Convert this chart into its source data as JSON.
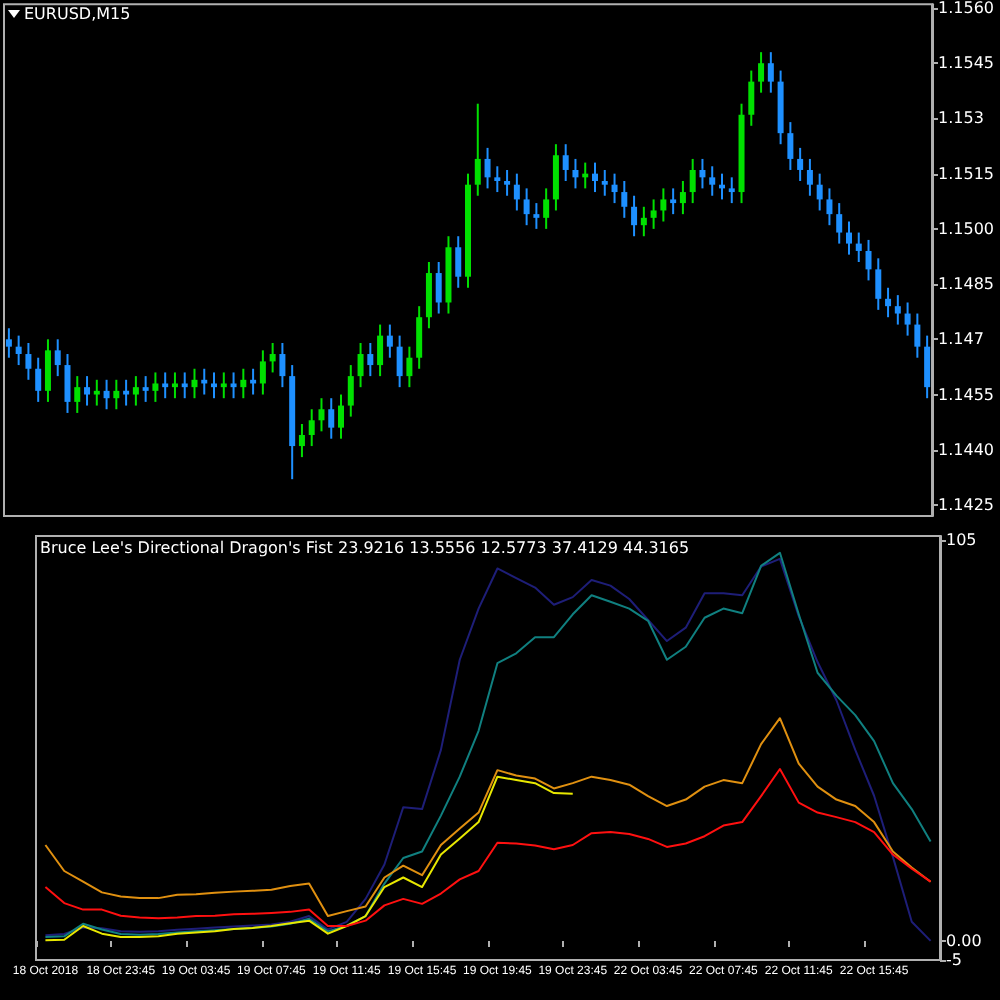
{
  "chart_data": [
    {
      "type": "candlestick",
      "title": "EURUSD,M15",
      "tick_labels": "y",
      "colors": [
        "#1e90ff",
        "#1e90ff",
        "#1e90ff",
        "#1e90ff",
        "#00e000",
        "#1e90ff",
        "#1e90ff",
        "#00e000",
        "#1e90ff",
        "#00e000",
        "#1e90ff",
        "#00e000",
        "#1e90ff",
        "#00e000",
        "#1e90ff",
        "#00e000",
        "#1e90ff",
        "#00e000",
        "#1e90ff",
        "#00e000",
        "#1e90ff",
        "#1e90ff",
        "#00e000",
        "#1e90ff",
        "#00e000",
        "#1e90ff",
        "#00e000",
        "#00e000",
        "#1e90ff",
        "#1e90ff",
        "#00e000",
        "#00e000",
        "#00e000",
        "#1e90ff",
        "#00e000",
        "#00e000",
        "#00e000",
        "#1e90ff",
        "#00e000",
        "#1e90ff",
        "#1e90ff",
        "#00e000",
        "#00e000",
        "#00e000",
        "#1e90ff",
        "#00e000",
        "#1e90ff",
        "#00e000",
        "#00e000",
        "#1e90ff",
        "#1e90ff",
        "#1e90ff",
        "#1e90ff",
        "#1e90ff",
        "#1e90ff",
        "#00e000",
        "#00e000",
        "#1e90ff",
        "#1e90ff",
        "#00e000",
        "#1e90ff",
        "#1e90ff",
        "#1e90ff",
        "#1e90ff",
        "#1e90ff",
        "#00e000",
        "#00e000",
        "#00e000",
        "#1e90ff",
        "#00e000",
        "#00e000",
        "#1e90ff",
        "#1e90ff",
        "#1e90ff",
        "#1e90ff",
        "#00e000",
        "#00e000",
        "#00e000",
        "#1e90ff",
        "#1e90ff",
        "#1e90ff",
        "#1e90ff",
        "#1e90ff",
        "#1e90ff",
        "#1e90ff",
        "#1e90ff",
        "#1e90ff",
        "#1e90ff",
        "#1e90ff",
        "#1e90ff",
        "#1e90ff",
        "#1e90ff",
        "#1e90ff",
        "#1e90ff",
        "#1e90ff"
      ],
      "categories": [
        null,
        null,
        null,
        null,
        null,
        null,
        null,
        null,
        null,
        null,
        null,
        null,
        null,
        null,
        null,
        null,
        null,
        null,
        null,
        null,
        null,
        null,
        null,
        null,
        null,
        null,
        null,
        null,
        null,
        null,
        null,
        null,
        null,
        null,
        null,
        null,
        null,
        null,
        null,
        null,
        null,
        null,
        null,
        null,
        null,
        null,
        null,
        null,
        null,
        null,
        null,
        null,
        null,
        null,
        null,
        null,
        null,
        null,
        null,
        null,
        null,
        null,
        null,
        null,
        null,
        null,
        null,
        null,
        null,
        null,
        null,
        null,
        null,
        null,
        null,
        null,
        null,
        null,
        null,
        null,
        null,
        null,
        null,
        null,
        null,
        null,
        null,
        null,
        null,
        null,
        null,
        null,
        null,
        null,
        null
      ],
      "ohlc": [
        [
          1.147,
          1.1473,
          1.1465,
          1.1468
        ],
        [
          1.1468,
          1.1471,
          1.1463,
          1.1466
        ],
        [
          1.1466,
          1.1469,
          1.1459,
          1.1462
        ],
        [
          1.1462,
          1.1465,
          1.1453,
          1.1456
        ],
        [
          1.1456,
          1.147,
          1.1453,
          1.1467
        ],
        [
          1.1467,
          1.147,
          1.146,
          1.1463
        ],
        [
          1.1463,
          1.1466,
          1.145,
          1.1453
        ],
        [
          1.1453,
          1.146,
          1.145,
          1.1457
        ],
        [
          1.1457,
          1.146,
          1.1452,
          1.1455
        ],
        [
          1.1455,
          1.1459,
          1.1452,
          1.1456
        ],
        [
          1.1456,
          1.1459,
          1.1451,
          1.1454
        ],
        [
          1.1454,
          1.1459,
          1.1451,
          1.1456
        ],
        [
          1.1456,
          1.1459,
          1.1452,
          1.1455
        ],
        [
          1.1455,
          1.146,
          1.1452,
          1.1457
        ],
        [
          1.1457,
          1.146,
          1.1453,
          1.1456
        ],
        [
          1.1456,
          1.1461,
          1.1453,
          1.1458
        ],
        [
          1.1458,
          1.1461,
          1.1454,
          1.1457
        ],
        [
          1.1457,
          1.1461,
          1.1454,
          1.1458
        ],
        [
          1.1458,
          1.1461,
          1.1454,
          1.1457
        ],
        [
          1.1457,
          1.1462,
          1.1454,
          1.1459
        ],
        [
          1.1459,
          1.1462,
          1.1455,
          1.1458
        ],
        [
          1.1458,
          1.1461,
          1.1454,
          1.1457
        ],
        [
          1.1457,
          1.1461,
          1.1454,
          1.1458
        ],
        [
          1.1458,
          1.1461,
          1.1454,
          1.1457
        ],
        [
          1.1457,
          1.1462,
          1.1454,
          1.1459
        ],
        [
          1.1459,
          1.1462,
          1.1455,
          1.1458
        ],
        [
          1.1458,
          1.1467,
          1.1455,
          1.1464
        ],
        [
          1.1464,
          1.1469,
          1.1461,
          1.1466
        ],
        [
          1.1466,
          1.1469,
          1.1457,
          1.146
        ],
        [
          1.146,
          1.1463,
          1.1432,
          1.1441
        ],
        [
          1.1441,
          1.1447,
          1.1438,
          1.1444
        ],
        [
          1.1444,
          1.1451,
          1.1441,
          1.1448
        ],
        [
          1.1448,
          1.1454,
          1.1445,
          1.1451
        ],
        [
          1.1451,
          1.1454,
          1.1443,
          1.1446
        ],
        [
          1.1446,
          1.1455,
          1.1443,
          1.1452
        ],
        [
          1.1452,
          1.1463,
          1.1449,
          1.146
        ],
        [
          1.146,
          1.1469,
          1.1457,
          1.1466
        ],
        [
          1.1466,
          1.1469,
          1.146,
          1.1463
        ],
        [
          1.1463,
          1.1474,
          1.146,
          1.1471
        ],
        [
          1.1471,
          1.1474,
          1.1465,
          1.1468
        ],
        [
          1.1468,
          1.1471,
          1.1457,
          1.146
        ],
        [
          1.146,
          1.1468,
          1.1457,
          1.1465
        ],
        [
          1.1465,
          1.1479,
          1.1462,
          1.1476
        ],
        [
          1.1476,
          1.1491,
          1.1473,
          1.1488
        ],
        [
          1.1488,
          1.1491,
          1.1477,
          1.148
        ],
        [
          1.148,
          1.1498,
          1.1477,
          1.1495
        ],
        [
          1.1495,
          1.1498,
          1.1484,
          1.1487
        ],
        [
          1.1487,
          1.1515,
          1.1484,
          1.1512
        ],
        [
          1.1512,
          1.1534,
          1.1509,
          1.1519
        ],
        [
          1.1519,
          1.1522,
          1.1511,
          1.1514
        ],
        [
          1.1514,
          1.1517,
          1.151,
          1.1513
        ],
        [
          1.1513,
          1.1516,
          1.1509,
          1.1512
        ],
        [
          1.1512,
          1.1515,
          1.1505,
          1.1508
        ],
        [
          1.1508,
          1.1511,
          1.1501,
          1.1504
        ],
        [
          1.1504,
          1.1507,
          1.15,
          1.1503
        ],
        [
          1.1503,
          1.1511,
          1.15,
          1.1508
        ],
        [
          1.1508,
          1.1523,
          1.1505,
          1.152
        ],
        [
          1.152,
          1.1523,
          1.1513,
          1.1516
        ],
        [
          1.1516,
          1.1519,
          1.1511,
          1.1514
        ],
        [
          1.1514,
          1.1518,
          1.1511,
          1.1515
        ],
        [
          1.1515,
          1.1518,
          1.151,
          1.1513
        ],
        [
          1.1513,
          1.1516,
          1.1509,
          1.1512
        ],
        [
          1.1512,
          1.1515,
          1.1507,
          1.151
        ],
        [
          1.151,
          1.1513,
          1.1503,
          1.1506
        ],
        [
          1.1506,
          1.1509,
          1.1498,
          1.1501
        ],
        [
          1.1501,
          1.1506,
          1.1498,
          1.1503
        ],
        [
          1.1503,
          1.1508,
          1.15,
          1.1505
        ],
        [
          1.1505,
          1.1511,
          1.1502,
          1.1508
        ],
        [
          1.1508,
          1.1511,
          1.1504,
          1.1507
        ],
        [
          1.1507,
          1.1513,
          1.1504,
          1.151
        ],
        [
          1.151,
          1.1519,
          1.1507,
          1.1516
        ],
        [
          1.1516,
          1.1519,
          1.1511,
          1.1514
        ],
        [
          1.1514,
          1.1517,
          1.1509,
          1.1512
        ],
        [
          1.1512,
          1.1515,
          1.1508,
          1.1511
        ],
        [
          1.1511,
          1.1514,
          1.1507,
          1.151
        ],
        [
          1.151,
          1.1534,
          1.1507,
          1.1531
        ],
        [
          1.1531,
          1.1543,
          1.1528,
          1.154
        ],
        [
          1.154,
          1.1548,
          1.1537,
          1.1545
        ],
        [
          1.1545,
          1.1548,
          1.1537,
          1.154
        ],
        [
          1.154,
          1.1543,
          1.1523,
          1.1526
        ],
        [
          1.1526,
          1.1529,
          1.1516,
          1.1519
        ],
        [
          1.1519,
          1.1522,
          1.1513,
          1.1516
        ],
        [
          1.1516,
          1.1519,
          1.1509,
          1.1512
        ],
        [
          1.1512,
          1.1515,
          1.1505,
          1.1508
        ],
        [
          1.1508,
          1.1511,
          1.1501,
          1.1504
        ],
        [
          1.1504,
          1.1507,
          1.1496,
          1.1499
        ],
        [
          1.1499,
          1.1502,
          1.1493,
          1.1496
        ],
        [
          1.1496,
          1.1499,
          1.1491,
          1.1494
        ],
        [
          1.1494,
          1.1497,
          1.1486,
          1.1489
        ],
        [
          1.1489,
          1.1492,
          1.1478,
          1.1481
        ],
        [
          1.1481,
          1.1484,
          1.1476,
          1.1479
        ],
        [
          1.1479,
          1.1482,
          1.1474,
          1.1477
        ],
        [
          1.1477,
          1.148,
          1.1471,
          1.1474
        ],
        [
          1.1474,
          1.1477,
          1.1465,
          1.1468
        ],
        [
          1.1468,
          1.1471,
          1.1454,
          1.1457
        ]
      ],
      "ylim": [
        1.1422,
        1.1561
      ],
      "yticks": [
        1.1425,
        {
          "value": 1.144,
          "label": "1.1440"
        },
        1.1455,
        1.147,
        1.1485,
        {
          "value": 1.15,
          "label": "1.1500"
        },
        1.1515,
        1.153,
        1.1545,
        {
          "value": 1.156,
          "label": "1.1560"
        }
      ]
    },
    {
      "type": "line",
      "title": "Bruce Lee's Directional Dragon's Fist 23.9216 13.5556 12.5773 37.4129 44.3165",
      "marker": "none",
      "categories": [
        "18 Oct 2018",
        null,
        null,
        null,
        "18 Oct 23:45",
        null,
        null,
        null,
        "19 Oct 03:45",
        null,
        null,
        null,
        "19 Oct 07:45",
        null,
        null,
        null,
        "19 Oct 11:45",
        null,
        null,
        null,
        "19 Oct 15:45",
        null,
        null,
        null,
        "19 Oct 19:45",
        null,
        null,
        null,
        "19 Oct 23:45",
        null,
        null,
        null,
        "22 Oct 03:45",
        null,
        null,
        null,
        "22 Oct 07:45",
        null,
        null,
        null,
        "22 Oct 11:45",
        null,
        null,
        null,
        "22 Oct 15:45",
        null,
        null,
        null
      ],
      "ylim": [
        -5,
        106
      ],
      "yticks": [
        105,
        {
          "value": 0,
          "label": "0.00"
        },
        -5
      ],
      "series": [
        {
          "color": "#1e1e78",
          "values": [
            1.5,
            1.8,
            3.5,
            3.3,
            2.5,
            2.4,
            2.5,
            2.9,
            3.2,
            3.5,
            3.8,
            4.0,
            4.3,
            5.0,
            6.5,
            3.0,
            5.0,
            11,
            20,
            35,
            34.5,
            50,
            73.6,
            87,
            97.5,
            95,
            92.5,
            88,
            90,
            94.5,
            93,
            89.5,
            84,
            78.5,
            82,
            91,
            91,
            90.5,
            98,
            100,
            85,
            73,
            63,
            50,
            38,
            22,
            5,
            0
          ]
        },
        {
          "color": "#108080",
          "values": [
            1.0,
            1.2,
            4.5,
            3.0,
            1.8,
            1.6,
            1.8,
            2.2,
            2.5,
            2.8,
            3.1,
            3.4,
            3.8,
            4.5,
            5.8,
            2.5,
            4.0,
            6.5,
            15,
            21.7,
            23.4,
            32.8,
            43,
            55,
            72.7,
            75.3,
            79.5,
            79.5,
            85.5,
            90.5,
            88.8,
            87,
            83.8,
            73.6,
            77,
            84.6,
            87,
            85.8,
            98.2,
            101.6,
            85.5,
            70.2,
            64.2,
            59.1,
            52.3,
            41.3,
            34.5,
            26
          ]
        },
        {
          "color": "#e8e800",
          "values": [
            0.2,
            0.3,
            3.9,
            1.9,
            1.0,
            1.0,
            1.2,
            1.9,
            2.2,
            2.5,
            3.1,
            3.4,
            3.9,
            4.6,
            5.3,
            1.9,
            3.9,
            6.5,
            14.1,
            16.6,
            14.1,
            22.6,
            26.8,
            31.1,
            43,
            42.1,
            41.3,
            38.7,
            38.5,
            null,
            null,
            null,
            null,
            null,
            null,
            null,
            null,
            null,
            null,
            null,
            null,
            null,
            null,
            null,
            null,
            null,
            null,
            null
          ]
        },
        {
          "color": "#e09010",
          "values": [
            25.1,
            18.3,
            15.5,
            12.7,
            11.6,
            11.2,
            11.2,
            12.1,
            12.2,
            12.6,
            12.9,
            13.1,
            13.4,
            14.4,
            15,
            6.5,
            7.8,
            9,
            16.6,
            19.7,
            17.2,
            25.1,
            29.4,
            33.6,
            44.7,
            43.3,
            42.5,
            39.9,
            41.3,
            43,
            42.1,
            40.9,
            37.9,
            35.3,
            37,
            40.4,
            42.1,
            41.3,
            51.5,
            58.3,
            46.4,
            40.4,
            37,
            35.3,
            31.1,
            23.4,
            19.2,
            15.5
          ]
        },
        {
          "color": "#ff1010",
          "values": [
            14.1,
            9.9,
            8.2,
            8.2,
            6.6,
            6.1,
            5.9,
            6.1,
            6.5,
            6.6,
            7.0,
            7.1,
            7.3,
            7.6,
            8.2,
            3.9,
            3.9,
            5.3,
            9.3,
            11,
            9.7,
            12.4,
            16.1,
            18.3,
            25.7,
            25.5,
            25,
            24,
            25.1,
            28.2,
            28.5,
            28,
            26.7,
            24.6,
            25.5,
            27.4,
            30.2,
            31.1,
            37.9,
            45,
            36.2,
            33.6,
            32.4,
            31.1,
            28.5,
            22.6,
            18.9,
            15.5
          ]
        }
      ]
    }
  ]
}
